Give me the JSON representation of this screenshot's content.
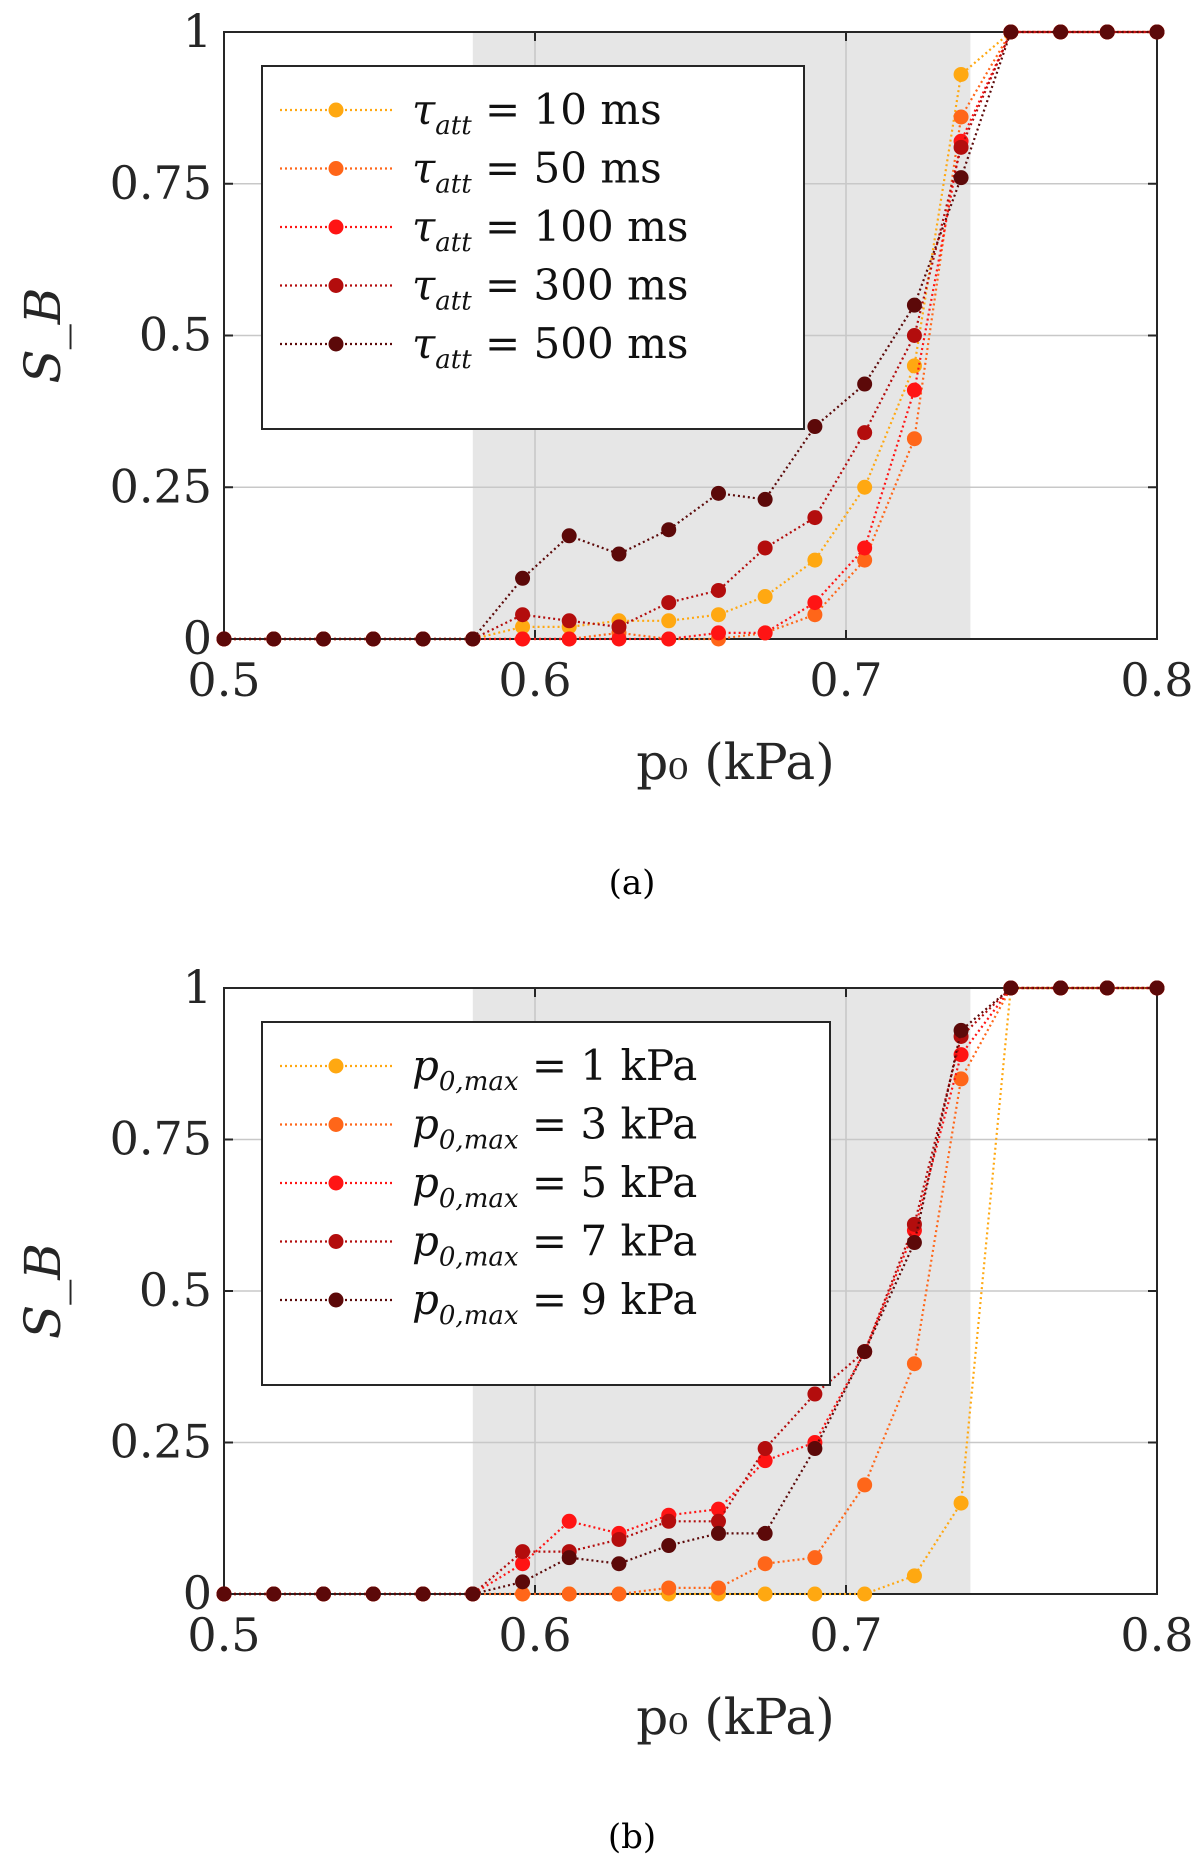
{
  "figure": {
    "captions": [
      "(a)",
      "(b)"
    ]
  },
  "colors": [
    "#FFA811",
    "#FF6619",
    "#FF1414",
    "#B30D0D",
    "#5C0909"
  ],
  "chart_data": [
    {
      "type": "line",
      "panel": "(a)",
      "title": "",
      "xlabel": "p₀ (kPa)",
      "ylabel": "S_B",
      "xlim": [
        0.5,
        0.8
      ],
      "ylim": [
        0,
        1
      ],
      "xticks": [
        0.5,
        0.6,
        0.7,
        0.8
      ],
      "xtick_labels": [
        "0.5",
        "0.6",
        "0.7",
        "0.8"
      ],
      "yticks": [
        0,
        0.25,
        0.5,
        0.75,
        1
      ],
      "ytick_labels": [
        "0",
        "0.25",
        "0.5",
        "0.75",
        "1"
      ],
      "grid": true,
      "shaded_region": [
        0.58,
        0.74
      ],
      "legend_location": "top-left",
      "x": [
        0.5,
        0.516,
        0.532,
        0.548,
        0.564,
        0.58,
        0.596,
        0.611,
        0.627,
        0.643,
        0.659,
        0.674,
        0.69,
        0.706,
        0.722,
        0.737,
        0.753,
        0.769,
        0.784,
        0.8
      ],
      "series": [
        {
          "name": "τ_att = 10 ms",
          "symbol": "τ",
          "subscript": "att",
          "suffix": " = 10 ms",
          "values": [
            0,
            0,
            0,
            0,
            0,
            0,
            0.02,
            0.02,
            0.03,
            0.03,
            0.04,
            0.07,
            0.13,
            0.25,
            0.45,
            0.93,
            1,
            1,
            1,
            1
          ]
        },
        {
          "name": "τ_att = 50 ms",
          "symbol": "τ",
          "subscript": "att",
          "suffix": " = 50 ms",
          "values": [
            0,
            0,
            0,
            0,
            0,
            0,
            0,
            0,
            0.01,
            0,
            0,
            0.01,
            0.04,
            0.13,
            0.33,
            0.86,
            1,
            1,
            1,
            1
          ]
        },
        {
          "name": "τ_att = 100 ms",
          "symbol": "τ",
          "subscript": "att",
          "suffix": " = 100 ms",
          "values": [
            0,
            0,
            0,
            0,
            0,
            0,
            0,
            0,
            0,
            0,
            0.01,
            0.01,
            0.06,
            0.15,
            0.41,
            0.82,
            1,
            1,
            1,
            1
          ]
        },
        {
          "name": "τ_att = 300 ms",
          "symbol": "τ",
          "subscript": "att",
          "suffix": " = 300 ms",
          "values": [
            0,
            0,
            0,
            0,
            0,
            0,
            0.04,
            0.03,
            0.02,
            0.06,
            0.08,
            0.15,
            0.2,
            0.34,
            0.5,
            0.81,
            1,
            1,
            1,
            1
          ]
        },
        {
          "name": "τ_att = 500 ms",
          "symbol": "τ",
          "subscript": "att",
          "suffix": " = 500 ms",
          "values": [
            0,
            0,
            0,
            0,
            0,
            0,
            0.1,
            0.17,
            0.14,
            0.18,
            0.24,
            0.23,
            0.35,
            0.42,
            0.55,
            0.76,
            1,
            1,
            1,
            1
          ]
        }
      ]
    },
    {
      "type": "line",
      "panel": "(b)",
      "title": "",
      "xlabel": "p₀ (kPa)",
      "ylabel": "S_B",
      "xlim": [
        0.5,
        0.8
      ],
      "ylim": [
        0,
        1
      ],
      "xticks": [
        0.5,
        0.6,
        0.7,
        0.8
      ],
      "xtick_labels": [
        "0.5",
        "0.6",
        "0.7",
        "0.8"
      ],
      "yticks": [
        0,
        0.25,
        0.5,
        0.75,
        1
      ],
      "ytick_labels": [
        "0",
        "0.25",
        "0.5",
        "0.75",
        "1"
      ],
      "grid": true,
      "shaded_region": [
        0.58,
        0.74
      ],
      "legend_location": "top-left",
      "x": [
        0.5,
        0.516,
        0.532,
        0.548,
        0.564,
        0.58,
        0.596,
        0.611,
        0.627,
        0.643,
        0.659,
        0.674,
        0.69,
        0.706,
        0.722,
        0.737,
        0.753,
        0.769,
        0.784,
        0.8
      ],
      "series": [
        {
          "name": "p0,max = 1 kPa",
          "symbol": "p",
          "subscript": "0,max",
          "suffix": " = 1 kPa",
          "values": [
            0,
            0,
            0,
            0,
            0,
            0,
            0,
            0,
            0,
            0,
            0,
            0,
            0,
            0,
            0.03,
            0.15,
            1,
            1,
            1,
            1
          ]
        },
        {
          "name": "p0,max = 3 kPa",
          "symbol": "p",
          "subscript": "0,max",
          "suffix": " = 3 kPa",
          "values": [
            0,
            0,
            0,
            0,
            0,
            0,
            0,
            0,
            0,
            0.01,
            0.01,
            0.05,
            0.06,
            0.18,
            0.38,
            0.85,
            1,
            1,
            1,
            1
          ]
        },
        {
          "name": "p0,max = 5 kPa",
          "symbol": "p",
          "subscript": "0,max",
          "suffix": " = 5 kPa",
          "values": [
            0,
            0,
            0,
            0,
            0,
            0,
            0.05,
            0.12,
            0.1,
            0.13,
            0.14,
            0.22,
            0.25,
            0.4,
            0.6,
            0.89,
            1,
            1,
            1,
            1
          ]
        },
        {
          "name": "p0,max = 7 kPa",
          "symbol": "p",
          "subscript": "0,max",
          "suffix": " = 7 kPa",
          "values": [
            0,
            0,
            0,
            0,
            0,
            0,
            0.07,
            0.07,
            0.09,
            0.12,
            0.12,
            0.24,
            0.33,
            0.4,
            0.61,
            0.92,
            1,
            1,
            1,
            1
          ]
        },
        {
          "name": "p0,max = 9 kPa",
          "symbol": "p",
          "subscript": "0,max",
          "suffix": " = 9 kPa",
          "values": [
            0,
            0,
            0,
            0,
            0,
            0,
            0.02,
            0.06,
            0.05,
            0.08,
            0.1,
            0.1,
            0.24,
            0.4,
            0.58,
            0.93,
            1,
            1,
            1,
            1
          ]
        }
      ]
    }
  ]
}
